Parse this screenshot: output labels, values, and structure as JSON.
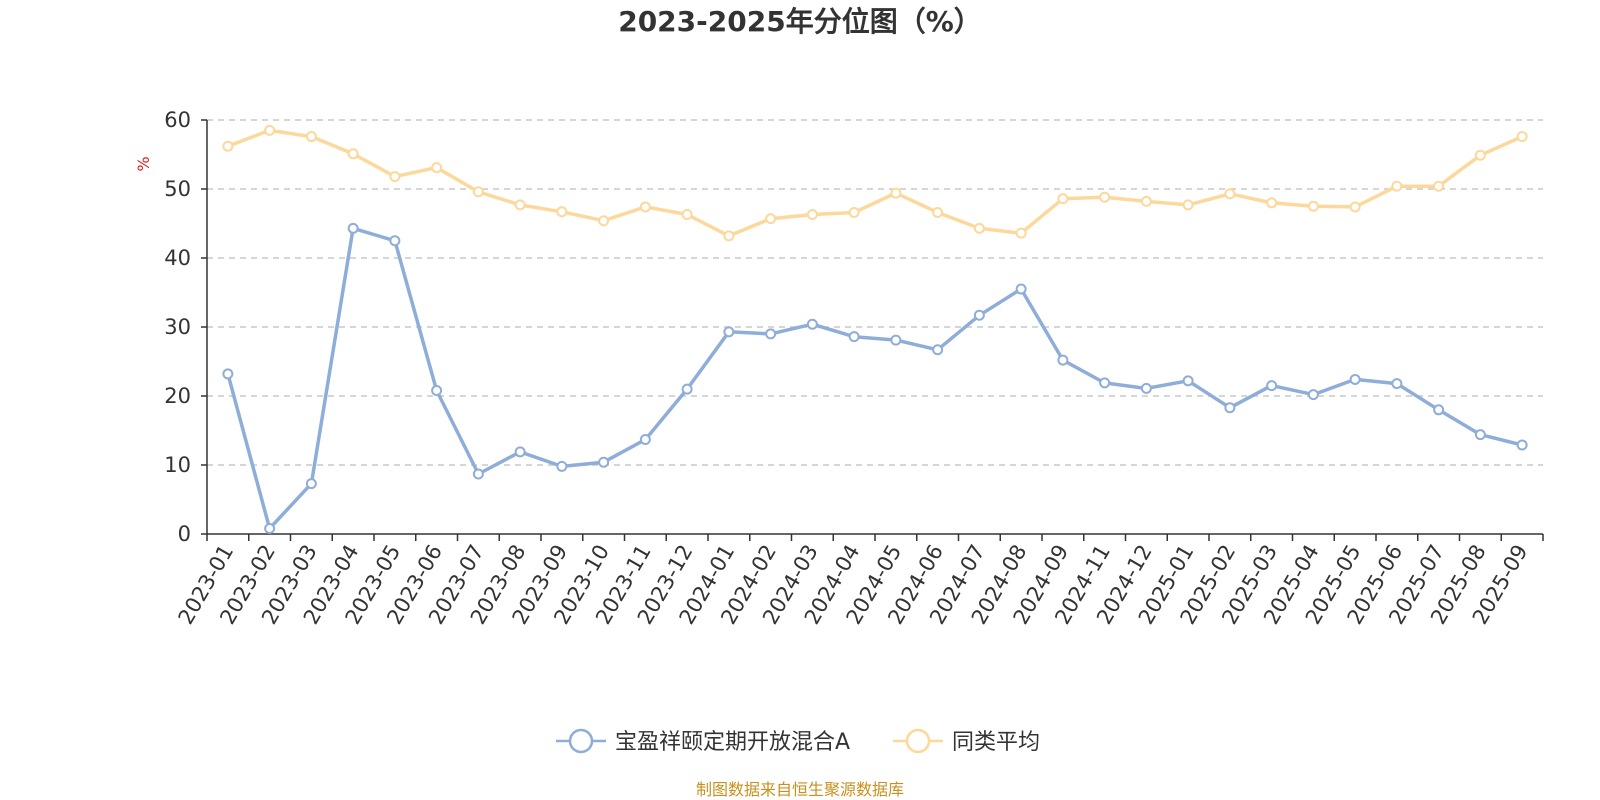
{
  "chart_data": {
    "type": "line",
    "title": "2023-2025年分位图（%）",
    "ylabel": "%",
    "xlabel": "",
    "ylim": [
      0,
      60
    ],
    "yticks": [
      0,
      10,
      20,
      30,
      40,
      50,
      60
    ],
    "grid": true,
    "legend_position": "bottom-center",
    "categories": [
      "2023-01",
      "2023-02",
      "2023-03",
      "2023-04",
      "2023-05",
      "2023-06",
      "2023-07",
      "2023-08",
      "2023-09",
      "2023-10",
      "2023-11",
      "2023-12",
      "2024-01",
      "2024-02",
      "2024-03",
      "2024-04",
      "2024-05",
      "2024-06",
      "2024-07",
      "2024-08",
      "2024-09",
      "2024-11",
      "2024-12",
      "2025-01",
      "2025-02",
      "2025-03",
      "2025-04",
      "2025-05",
      "2025-06",
      "2025-07",
      "2025-08",
      "2025-09"
    ],
    "series": [
      {
        "name": "宝盈祥颐定期开放混合A",
        "color": "#8eadd8",
        "values": [
          23.2,
          0.8,
          7.3,
          44.3,
          42.5,
          20.8,
          8.7,
          11.9,
          9.8,
          10.4,
          13.7,
          21.0,
          29.3,
          29.0,
          30.4,
          28.6,
          28.1,
          26.7,
          31.7,
          35.5,
          25.2,
          21.9,
          21.1,
          22.2,
          18.3,
          21.5,
          20.2,
          22.4,
          21.8,
          18.0,
          14.4,
          12.9
        ]
      },
      {
        "name": "同类平均",
        "color": "#fcd89b",
        "values": [
          56.2,
          58.5,
          57.6,
          55.1,
          51.8,
          53.1,
          49.6,
          47.7,
          46.7,
          45.4,
          47.4,
          46.3,
          43.2,
          45.7,
          46.3,
          46.6,
          49.4,
          46.6,
          44.3,
          43.6,
          48.6,
          48.8,
          48.2,
          47.7,
          49.3,
          48.0,
          47.5,
          47.4,
          50.4,
          50.4,
          54.9,
          57.6
        ]
      }
    ]
  },
  "footer": {
    "source": "制图数据来自恒生聚源数据库"
  }
}
